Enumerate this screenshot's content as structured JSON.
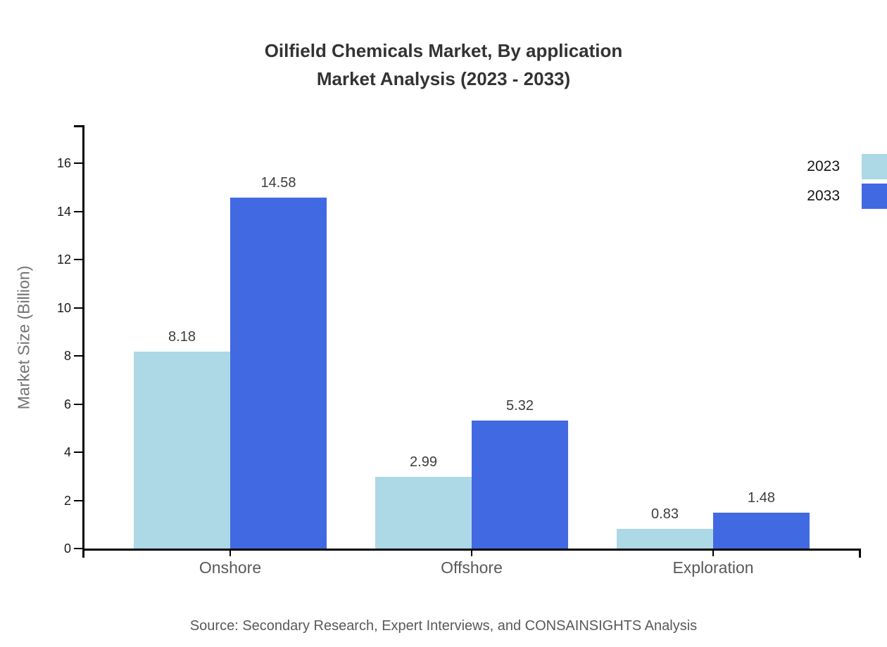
{
  "title": {
    "line1": "Oilfield Chemicals Market, By application",
    "line2": "Market Analysis (2023 - 2033)"
  },
  "source": "Source: Secondary Research, Expert Interviews, and CONSAINSIGHTS Analysis",
  "chart_data": {
    "type": "bar",
    "title": "Oilfield Chemicals Market, By application Market Analysis (2023 - 2033)",
    "categories": [
      "Onshore",
      "Offshore",
      "Exploration"
    ],
    "series": [
      {
        "name": "2023",
        "color": "#ADD8E6",
        "values": [
          8.18,
          2.99,
          0.83
        ]
      },
      {
        "name": "2033",
        "color": "#4169E1",
        "values": [
          14.58,
          5.32,
          1.48
        ]
      }
    ],
    "xlabel": "",
    "ylabel": "Market Size (Billion)",
    "ylim": [
      0,
      17.5
    ],
    "yticks": [
      0,
      2,
      4,
      6,
      8,
      10,
      12,
      14,
      16
    ],
    "grid": false,
    "value_labels": true,
    "legend_position": "upper-right",
    "axis_color": "#000000"
  }
}
